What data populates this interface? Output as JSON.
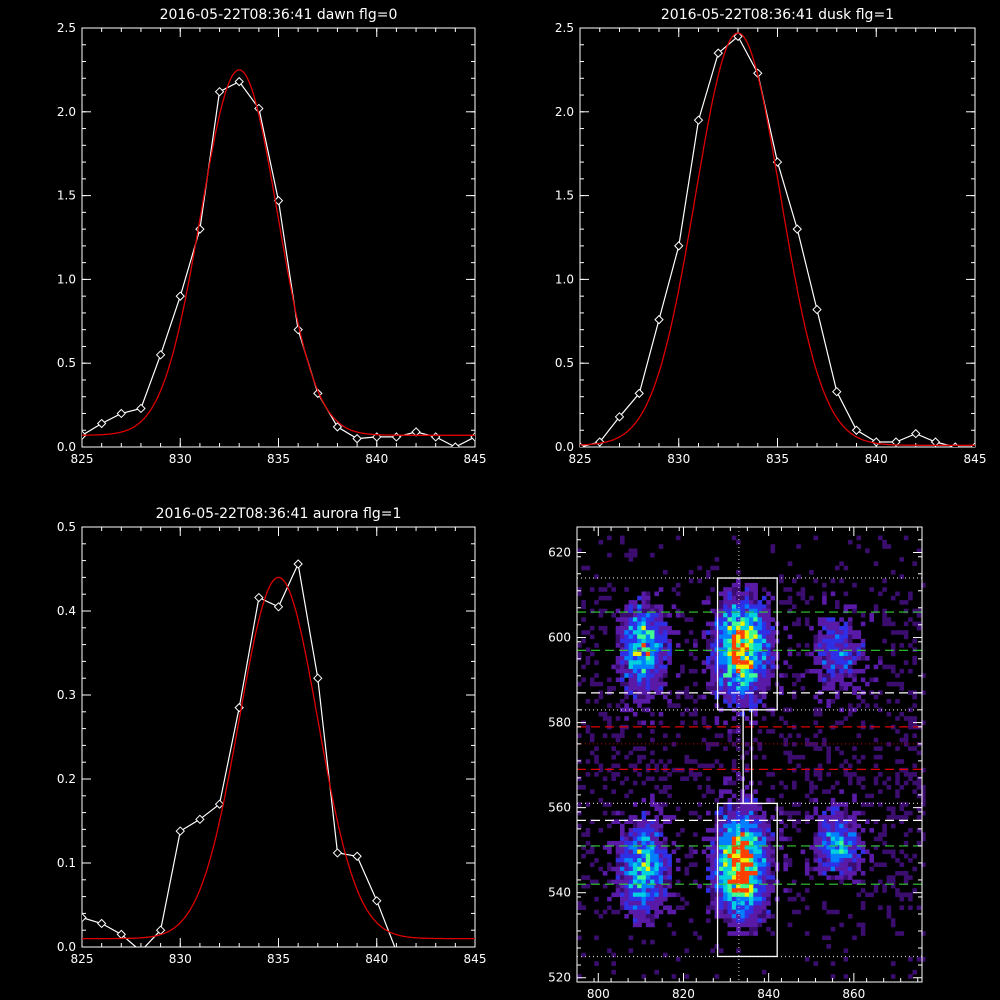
{
  "chart_data": [
    {
      "type": "line",
      "title": "2016-05-22T08:36:41 dawn flg=0",
      "xlim": [
        825,
        845
      ],
      "ylim": [
        0,
        2.5
      ],
      "xticks": [
        "825",
        "830",
        "835",
        "840",
        "845"
      ],
      "yticks": [
        "0.0",
        "0.5",
        "1.0",
        "1.5",
        "2.0",
        "2.5"
      ],
      "series": [
        {
          "style": "white line with diamond markers",
          "color": "#ffffff",
          "x": [
            825,
            826,
            827,
            828,
            829,
            830,
            831,
            832,
            833,
            834,
            835,
            836,
            837,
            838,
            839,
            840,
            841,
            842,
            843,
            844,
            845
          ],
          "y": [
            0.07,
            0.14,
            0.2,
            0.23,
            0.55,
            0.9,
            1.3,
            2.12,
            2.18,
            2.02,
            1.47,
            0.7,
            0.32,
            0.12,
            0.05,
            0.06,
            0.06,
            0.09,
            0.06,
            0.0,
            0.06
          ]
        },
        {
          "style": "red fit curve",
          "color": "#dd0000",
          "kind": "gaussian",
          "amplitude": 2.18,
          "center": 833.0,
          "sigma": 1.95,
          "baseline": 0.07
        }
      ]
    },
    {
      "type": "line",
      "title": "2016-05-22T08:36:41 dusk flg=1",
      "xlim": [
        825,
        845
      ],
      "ylim": [
        0,
        2.5
      ],
      "xticks": [
        "825",
        "830",
        "835",
        "840",
        "845"
      ],
      "yticks": [
        "0.0",
        "0.5",
        "1.0",
        "1.5",
        "2.0",
        "2.5"
      ],
      "series": [
        {
          "style": "white line with diamond markers",
          "color": "#ffffff",
          "x": [
            825,
            826,
            827,
            828,
            829,
            830,
            831,
            832,
            833,
            834,
            835,
            836,
            837,
            838,
            839,
            840,
            841,
            842,
            843,
            844,
            845
          ],
          "y": [
            0.0,
            0.03,
            0.18,
            0.32,
            0.76,
            1.2,
            1.95,
            2.35,
            2.45,
            2.23,
            1.7,
            1.3,
            0.82,
            0.33,
            0.1,
            0.03,
            0.03,
            0.08,
            0.03,
            0.0,
            0.0
          ]
        },
        {
          "style": "red fit curve",
          "color": "#dd0000",
          "kind": "gaussian",
          "amplitude": 2.46,
          "center": 833.0,
          "sigma": 2.15,
          "baseline": 0.01
        }
      ]
    },
    {
      "type": "line",
      "title": "2016-05-22T08:36:41 aurora flg=1",
      "xlim": [
        825,
        845
      ],
      "ylim": [
        0,
        0.5
      ],
      "xticks": [
        "825",
        "830",
        "835",
        "840",
        "845"
      ],
      "yticks": [
        "0.0",
        "0.1",
        "0.2",
        "0.3",
        "0.4",
        "0.5"
      ],
      "series": [
        {
          "style": "white line with diamond markers",
          "color": "#ffffff",
          "x": [
            825,
            826,
            827,
            828,
            829,
            830,
            831,
            832,
            833,
            834,
            835,
            836,
            837,
            838,
            839,
            840,
            841,
            842,
            843,
            844,
            845
          ],
          "y": [
            0.035,
            0.028,
            0.015,
            -0.005,
            0.02,
            0.138,
            0.152,
            0.17,
            0.285,
            0.416,
            0.405,
            0.456,
            0.32,
            0.112,
            0.108,
            0.055,
            -0.005,
            -0.005,
            -0.005,
            -0.005,
            -0.005
          ]
        },
        {
          "style": "red fit curve",
          "color": "#dd0000",
          "kind": "gaussian",
          "amplitude": 0.43,
          "center": 835.0,
          "sigma": 2.0,
          "baseline": 0.01
        }
      ]
    },
    {
      "type": "heatmap",
      "title": "",
      "xlim": [
        795,
        876
      ],
      "ylim": [
        519,
        626
      ],
      "xticks": [
        "800",
        "820",
        "840",
        "860"
      ],
      "yticks": [
        "520",
        "540",
        "560",
        "580",
        "600",
        "620"
      ],
      "colormap": [
        "#000000",
        "#3b0d6e",
        "#5a1aa8",
        "#2f2fe6",
        "#0080ff",
        "#00d0e0",
        "#40ff90",
        "#f0f000",
        "#ff4000"
      ],
      "blobs": [
        {
          "x": 810,
          "y": 598,
          "sx": 3.0,
          "sy": 6.0,
          "intensity": 0.55
        },
        {
          "x": 833,
          "y": 598,
          "sx": 3.5,
          "sy": 6.5,
          "intensity": 0.9
        },
        {
          "x": 856,
          "y": 597,
          "sx": 3.5,
          "sy": 5.0,
          "intensity": 0.25
        },
        {
          "x": 810,
          "y": 546,
          "sx": 3.0,
          "sy": 6.5,
          "intensity": 0.55
        },
        {
          "x": 833,
          "y": 547,
          "sx": 3.5,
          "sy": 7.0,
          "intensity": 0.95
        },
        {
          "x": 856,
          "y": 552,
          "sx": 3.0,
          "sy": 4.5,
          "intensity": 0.4
        }
      ],
      "boxes": [
        {
          "x0": 828,
          "x1": 842,
          "y0": 583,
          "y1": 614
        },
        {
          "x0": 828,
          "x1": 842,
          "y0": 525,
          "y1": 561
        },
        {
          "x0": 834,
          "x1": 836,
          "y0": 561,
          "y1": 583
        }
      ],
      "vline": {
        "x": 833,
        "color": "#cccccc",
        "style": "dotted"
      },
      "hlines": [
        {
          "y": 614,
          "color": "#cccccc",
          "style": "dotted"
        },
        {
          "y": 606,
          "color": "#33cc33",
          "style": "dashed"
        },
        {
          "y": 597,
          "color": "#33cc33",
          "style": "dashed"
        },
        {
          "y": 587,
          "color": "#ffffff",
          "style": "dashed"
        },
        {
          "y": 583,
          "color": "#cccccc",
          "style": "dotted"
        },
        {
          "y": 579,
          "color": "#dd0000",
          "style": "dashed"
        },
        {
          "y": 575,
          "color": "#aa0000",
          "style": "dotted"
        },
        {
          "y": 569,
          "color": "#dd0000",
          "style": "dashed"
        },
        {
          "y": 561,
          "color": "#cccccc",
          "style": "dotted"
        },
        {
          "y": 557,
          "color": "#ffffff",
          "style": "dashed"
        },
        {
          "y": 551,
          "color": "#33cc33",
          "style": "dashed"
        },
        {
          "y": 542,
          "color": "#33cc33",
          "style": "dashed"
        },
        {
          "y": 525,
          "color": "#cccccc",
          "style": "dotted"
        }
      ]
    }
  ]
}
